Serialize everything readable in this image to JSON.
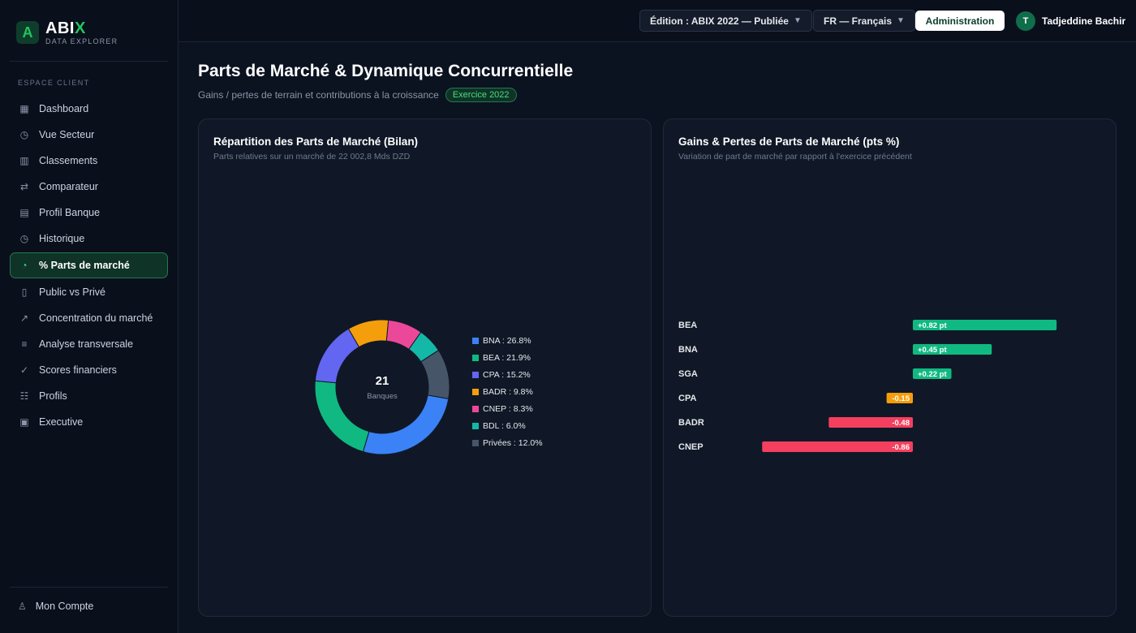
{
  "brand": {
    "name_main": "ABI",
    "name_accent": "X",
    "subtitle": "DATA EXPLORER",
    "logo_letter": "A"
  },
  "sidebar": {
    "section": "ESPACE CLIENT",
    "items": [
      {
        "label": "Dashboard",
        "icon": "grid-icon",
        "glyph": "▦"
      },
      {
        "label": "Vue Secteur",
        "icon": "clock-icon",
        "glyph": "◷"
      },
      {
        "label": "Classements",
        "icon": "bar-chart-icon",
        "glyph": "▥"
      },
      {
        "label": "Comparateur",
        "icon": "swap-icon",
        "glyph": "⇄"
      },
      {
        "label": "Profil Banque",
        "icon": "building-icon",
        "glyph": "▤"
      },
      {
        "label": "Historique",
        "icon": "history-icon",
        "glyph": "◷"
      },
      {
        "label": "% Parts de marché",
        "icon": "pie-icon",
        "glyph": "◔",
        "active": true
      },
      {
        "label": "Public vs Privé",
        "icon": "columns-icon",
        "glyph": "▯"
      },
      {
        "label": "Concentration du marché",
        "icon": "trend-icon",
        "glyph": "↗"
      },
      {
        "label": "Analyse transversale",
        "icon": "list-icon",
        "glyph": "≡"
      },
      {
        "label": "Scores financiers",
        "icon": "check-circle-icon",
        "glyph": "✓"
      },
      {
        "label": "Profils",
        "icon": "users-icon",
        "glyph": "☷"
      },
      {
        "label": "Executive",
        "icon": "briefcase-icon",
        "glyph": "▣"
      }
    ],
    "account": {
      "label": "Mon Compte",
      "icon": "user-icon",
      "glyph": "♙"
    }
  },
  "header": {
    "edition": "Édition : ABIX 2022 — Publiée",
    "language": "FR — Français",
    "admin": "Administration",
    "avatar_initial": "T",
    "user": "Tadjeddine Bachir"
  },
  "page": {
    "title": "Parts de Marché & Dynamique Concurrentielle",
    "subtitle": "Gains / pertes de terrain et contributions à la croissance",
    "badge": "Exercice 2022"
  },
  "donut_card": {
    "title": "Répartition des Parts de Marché (Bilan)",
    "subtitle": "Parts relatives sur un marché de 22 002,8 Mds DZD",
    "center_value": "21",
    "center_label": "Banques"
  },
  "bars_card": {
    "title": "Gains & Pertes de Parts de Marché (pts %)",
    "subtitle": "Variation de part de marché par rapport à l'exercice précédent"
  },
  "colors": {
    "accent": "#22c55e",
    "positive": "#10b981",
    "warning": "#f59e0b",
    "negative": "#f43f5e"
  },
  "chart_data": [
    {
      "type": "pie",
      "title": "Répartition des Parts de Marché (Bilan)",
      "categories": [
        "BNA",
        "BEA",
        "CPA",
        "BADR",
        "CNEP",
        "BDL",
        "Privées"
      ],
      "values": [
        26.8,
        21.9,
        15.2,
        9.8,
        8.3,
        6.0,
        12.0
      ],
      "labels": [
        "BNA : 26.8%",
        "BEA : 21.9%",
        "CPA : 15.2%",
        "BADR : 9.8%",
        "CNEP : 8.3%",
        "BDL : 6.0%",
        "Privées : 12.0%"
      ],
      "colors": [
        "#3b82f6",
        "#10b981",
        "#6366f1",
        "#f59e0b",
        "#ec4899",
        "#14b8a6",
        "#475569"
      ],
      "legend": "right"
    },
    {
      "type": "bar",
      "orientation": "horizontal",
      "title": "Gains & Pertes de Parts de Marché (pts %)",
      "categories": [
        "BEA",
        "BNA",
        "SGA",
        "CPA",
        "BADR",
        "CNEP"
      ],
      "values": [
        0.82,
        0.45,
        0.22,
        -0.15,
        -0.48,
        -0.86
      ],
      "labels": [
        "+0.82 pt",
        "+0.45 pt",
        "+0.22 pt",
        "-0.15",
        "-0.48",
        "-0.86"
      ],
      "colors": [
        "#10b981",
        "#10b981",
        "#10b981",
        "#f59e0b",
        "#f43f5e",
        "#f43f5e"
      ]
    }
  ]
}
